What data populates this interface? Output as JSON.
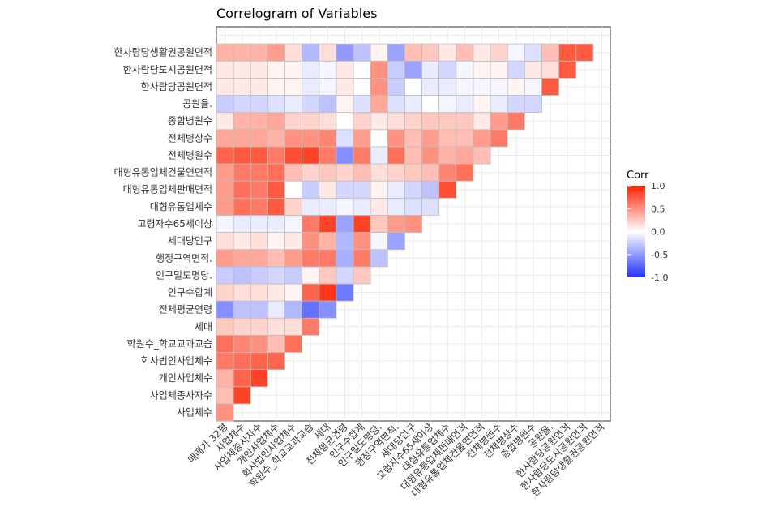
{
  "chart_data": {
    "type": "heatmap",
    "title": "Correlogram of Variables",
    "xlabel": "",
    "ylabel": "",
    "x_labels": [
      "매매가 32평",
      "사업체수",
      "사업체종사자수",
      "개인사업체수",
      "회사법인사업체수",
      "학원수_학교교과교습",
      "세대",
      "전체평균연령",
      "인구수합계",
      "인구밀도명당.",
      "행정구역면적.",
      "세대당인구",
      "고령자수65세이상",
      "대형유통업체수",
      "대형유통업체판매면적",
      "대형유통업체건물연면적",
      "전체병원수",
      "전체병상수",
      "종합병원수",
      "공원율.",
      "한사람당공원면적",
      "한사람당도시공원면적",
      "한사람당생활권공원면적"
    ],
    "y_labels": [
      "사업체수",
      "사업체종사자수",
      "개인사업체수",
      "회사법인사업체수",
      "학원수_학교교과교습",
      "세대",
      "전체평균연령",
      "인구수합계",
      "인구밀도명당.",
      "행정구역면적.",
      "세대당인구",
      "고령자수65세이상",
      "대형유통업체수",
      "대형유통업체판매면적",
      "대형유통업체건물연면적",
      "전체병원수",
      "전체병상수",
      "종합병원수",
      "공원율.",
      "한사람당공원면적",
      "한사람당도시공원면적",
      "한사람당생활권공원면적"
    ],
    "values": [
      [
        0.5
      ],
      [
        0.3,
        0.85
      ],
      [
        0.35,
        0.7,
        0.85
      ],
      [
        0.6,
        0.65,
        0.7,
        0.7
      ],
      [
        0.65,
        0.55,
        0.5,
        0.3,
        0.65
      ],
      [
        0.25,
        0.2,
        0.2,
        0.15,
        0.15,
        0.6
      ],
      [
        -0.55,
        -0.3,
        -0.3,
        -0.1,
        -0.35,
        -0.7,
        -0.55
      ],
      [
        0.2,
        0.15,
        0.15,
        0.1,
        0.05,
        0.7,
        0.9,
        -0.65
      ],
      [
        -0.25,
        -0.3,
        -0.25,
        -0.2,
        -0.25,
        0.05,
        0.25,
        -0.2,
        0.25
      ],
      [
        0.45,
        0.4,
        0.4,
        0.3,
        0.45,
        0.6,
        0.6,
        -0.4,
        0.6,
        -0.3
      ],
      [
        0.15,
        0.1,
        0.15,
        0.05,
        0.1,
        0.5,
        0.35,
        -0.35,
        0.5,
        -0.05,
        -0.45
      ],
      [
        -0.05,
        -0.1,
        -0.1,
        -0.1,
        -0.05,
        0.6,
        0.85,
        -0.45,
        0.85,
        0.25,
        0.45,
        0.5
      ],
      [
        0.45,
        0.65,
        0.6,
        0.75,
        0.2,
        -0.1,
        -0.1,
        -0.05,
        -0.1,
        0.1,
        -0.1,
        -0.15,
        -0.15
      ],
      [
        0.45,
        0.65,
        0.6,
        0.75,
        0.0,
        -0.25,
        0.1,
        -0.2,
        -0.2,
        0.05,
        -0.1,
        -0.2,
        -0.3,
        0.8
      ],
      [
        0.45,
        0.6,
        0.6,
        0.65,
        0.3,
        0.2,
        0.25,
        0.2,
        0.3,
        0.15,
        0.2,
        0.25,
        0.3,
        0.55,
        0.65
      ],
      [
        0.7,
        0.75,
        0.75,
        0.6,
        0.8,
        0.85,
        0.6,
        -0.55,
        0.6,
        -0.1,
        0.65,
        0.3,
        0.5,
        0.35,
        0.4,
        0.3
      ],
      [
        0.4,
        0.4,
        0.4,
        0.35,
        0.5,
        0.5,
        0.55,
        -0.15,
        0.45,
        0.0,
        0.5,
        0.3,
        0.45,
        0.3,
        0.3,
        0.45,
        0.6
      ],
      [
        0.1,
        0.35,
        0.35,
        0.4,
        0.2,
        0.2,
        0.15,
        0.0,
        0.2,
        0.1,
        0.15,
        0.2,
        0.25,
        0.25,
        0.25,
        0.1,
        0.45,
        0.6
      ],
      [
        -0.25,
        -0.2,
        -0.2,
        -0.15,
        -0.1,
        -0.2,
        -0.3,
        0.05,
        -0.15,
        0.4,
        -0.15,
        -0.1,
        0.0,
        -0.05,
        -0.1,
        0.05,
        -0.1,
        -0.2,
        -0.2
      ],
      [
        0.1,
        0.1,
        0.1,
        0.05,
        0.05,
        -0.1,
        -0.05,
        0.1,
        0.0,
        0.5,
        -0.25,
        0.0,
        -0.1,
        -0.1,
        -0.05,
        -0.05,
        -0.05,
        0.05,
        -0.05,
        0.75
      ],
      [
        0.1,
        0.1,
        0.1,
        0.05,
        0.05,
        -0.1,
        -0.05,
        0.1,
        0.0,
        0.5,
        -0.25,
        -0.45,
        -0.1,
        -0.2,
        -0.05,
        0.05,
        0.05,
        -0.2,
        0.1,
        0.15,
        0.75
      ],
      [
        0.35,
        0.35,
        0.35,
        0.45,
        0.15,
        -0.35,
        0.15,
        -0.5,
        -0.3,
        0.05,
        -0.45,
        0.3,
        0.25,
        0.1,
        0.3,
        0.1,
        0.2,
        -0.05,
        -0.15,
        0.3,
        0.75,
        0.75
      ]
    ],
    "legend": {
      "title": "Corr",
      "ticks": [
        "1.0",
        "0.5",
        "0.0",
        "-0.5",
        "-1.0"
      ],
      "position": "right"
    },
    "colors": {
      "low": "#2233ff",
      "mid": "#ffffff",
      "high": "#ff2200"
    },
    "grid": true
  }
}
